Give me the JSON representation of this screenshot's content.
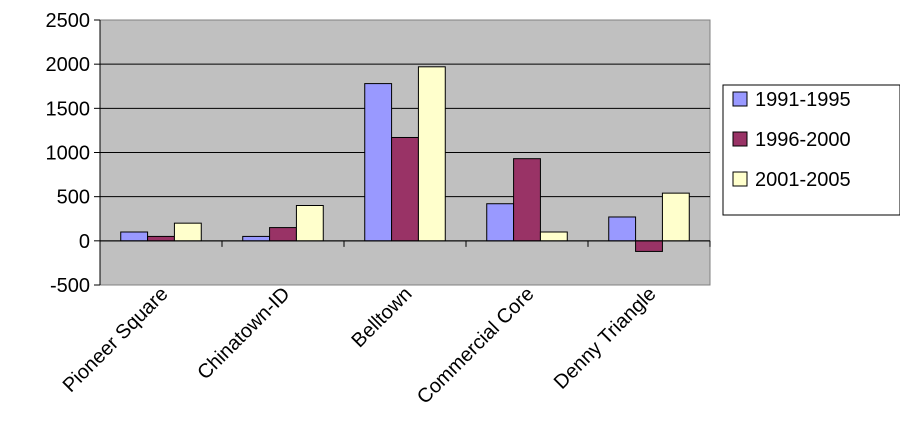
{
  "chart_data": {
    "type": "bar",
    "title": "",
    "xlabel": "",
    "ylabel": "",
    "categories": [
      "Pioneer Square",
      "Chinatown-ID",
      "Belltown",
      "Commercial Core",
      "Denny Triangle"
    ],
    "series": [
      {
        "name": "1991-1995",
        "color": "#9999ff",
        "values": [
          100,
          50,
          1780,
          420,
          270
        ]
      },
      {
        "name": "1996-2000",
        "color": "#993366",
        "values": [
          50,
          150,
          1170,
          930,
          -120
        ]
      },
      {
        "name": "2001-2005",
        "color": "#ffffcc",
        "values": [
          200,
          400,
          1970,
          100,
          540
        ]
      }
    ],
    "ylim": [
      -500,
      2500
    ],
    "yticks": [
      -500,
      0,
      500,
      1000,
      1500,
      2000,
      2500
    ],
    "grid": "horizontal",
    "plot_background": "#c0c0c0",
    "legend_position": "right"
  }
}
